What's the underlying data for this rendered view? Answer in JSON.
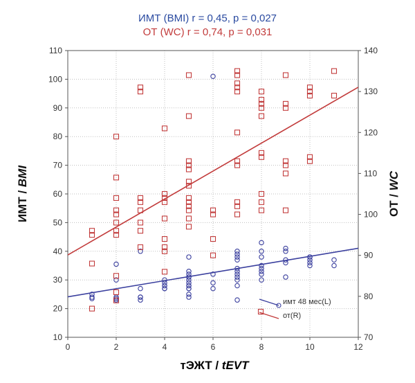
{
  "chart_data": {
    "type": "scatter",
    "title_line1": "ИМТ (BMI) r = 0,45,  p = 0,027",
    "title_line2": "ОТ (WC) r = 0,74,  p = 0,031",
    "xlabel_plain": "тЭЖТ / ",
    "xlabel_italic": "tEVT",
    "ylabel_left_plain": "ИМТ / ",
    "ylabel_left_italic": "BMI",
    "ylabel_right_plain": "ОТ / ",
    "ylabel_right_italic": "WC",
    "xlim": [
      0,
      12
    ],
    "ylim_left": [
      10,
      110
    ],
    "ylim_right": [
      70,
      140
    ],
    "xticks": [
      "0",
      "2",
      "4",
      "6",
      "8",
      "10",
      "12"
    ],
    "yticks_left": [
      "10",
      "20",
      "30",
      "40",
      "50",
      "60",
      "70",
      "80",
      "90",
      "100",
      "110"
    ],
    "yticks_right": [
      "70",
      "80",
      "90",
      "100",
      "110",
      "120",
      "130",
      "140"
    ],
    "grid": true,
    "legend_position": "bottom-right",
    "series": [
      {
        "name": "имт 48 мес(L)",
        "axis": "left",
        "color": "#3a3f9e",
        "marker": "circle",
        "x": [
          1,
          1,
          1,
          2,
          2,
          2,
          2,
          2,
          3,
          3,
          3,
          3,
          3,
          4,
          4,
          4,
          4,
          4,
          4,
          5,
          5,
          5,
          5,
          5,
          5,
          5,
          5,
          5,
          5,
          5,
          5,
          5,
          6,
          6,
          6,
          6,
          7,
          7,
          7,
          7,
          7,
          7,
          7,
          7,
          7,
          7,
          7,
          8,
          8,
          8,
          8,
          8,
          8,
          8,
          8,
          9,
          9,
          9,
          9,
          9,
          10,
          10,
          10,
          10,
          10,
          11,
          11
        ],
        "y": [
          25,
          24,
          23.5,
          35.5,
          24,
          23,
          23.5,
          30,
          40,
          27,
          24,
          24,
          23,
          28,
          29,
          30,
          27,
          28,
          27,
          38,
          33,
          31,
          30,
          29,
          28,
          27,
          27,
          25,
          24,
          31,
          32,
          28,
          101,
          32,
          29,
          27,
          40,
          39,
          38,
          37,
          34,
          33,
          32,
          31,
          30,
          28,
          23,
          43,
          40,
          38,
          35,
          34,
          33,
          32,
          30,
          41,
          40,
          37,
          36,
          31,
          38,
          37,
          36,
          35,
          38,
          37,
          35
        ]
      },
      {
        "name": "от(R)",
        "axis": "right",
        "color": "#c23b3b",
        "marker": "square",
        "x": [
          1,
          1,
          1,
          1,
          2,
          2,
          2,
          2,
          2,
          2,
          2,
          2,
          2,
          2,
          2,
          3,
          3,
          3,
          3,
          3,
          3,
          3,
          3,
          4,
          4,
          4,
          4,
          4,
          4,
          4,
          4,
          4,
          5,
          5,
          5,
          5,
          5,
          5,
          5,
          5,
          5,
          5,
          5,
          5,
          5,
          6,
          6,
          6,
          6,
          7,
          7,
          7,
          7,
          7,
          7,
          7,
          7,
          7,
          7,
          7,
          8,
          8,
          8,
          8,
          8,
          8,
          8,
          8,
          8,
          8,
          9,
          9,
          9,
          9,
          9,
          9,
          9,
          10,
          10,
          10,
          10,
          10,
          11,
          11
        ],
        "y": [
          96,
          95,
          88,
          77,
          119,
          109,
          104,
          101,
          100,
          98,
          96,
          95,
          85,
          81,
          79,
          131,
          130,
          104,
          103,
          101,
          98,
          96,
          92,
          121,
          105,
          104,
          103,
          99,
          94,
          92,
          91,
          86,
          134,
          124,
          113,
          112,
          111,
          108,
          107,
          104,
          103,
          102,
          101,
          99,
          97,
          101,
          100,
          94,
          90,
          135,
          134,
          132,
          131,
          130,
          120,
          113,
          112,
          103,
          102,
          100,
          130,
          128,
          127,
          126,
          124,
          115,
          114,
          105,
          103,
          101,
          134,
          127,
          126,
          113,
          112,
          110,
          101,
          131,
          130,
          129,
          114,
          113,
          135,
          129
        ]
      }
    ]
  }
}
